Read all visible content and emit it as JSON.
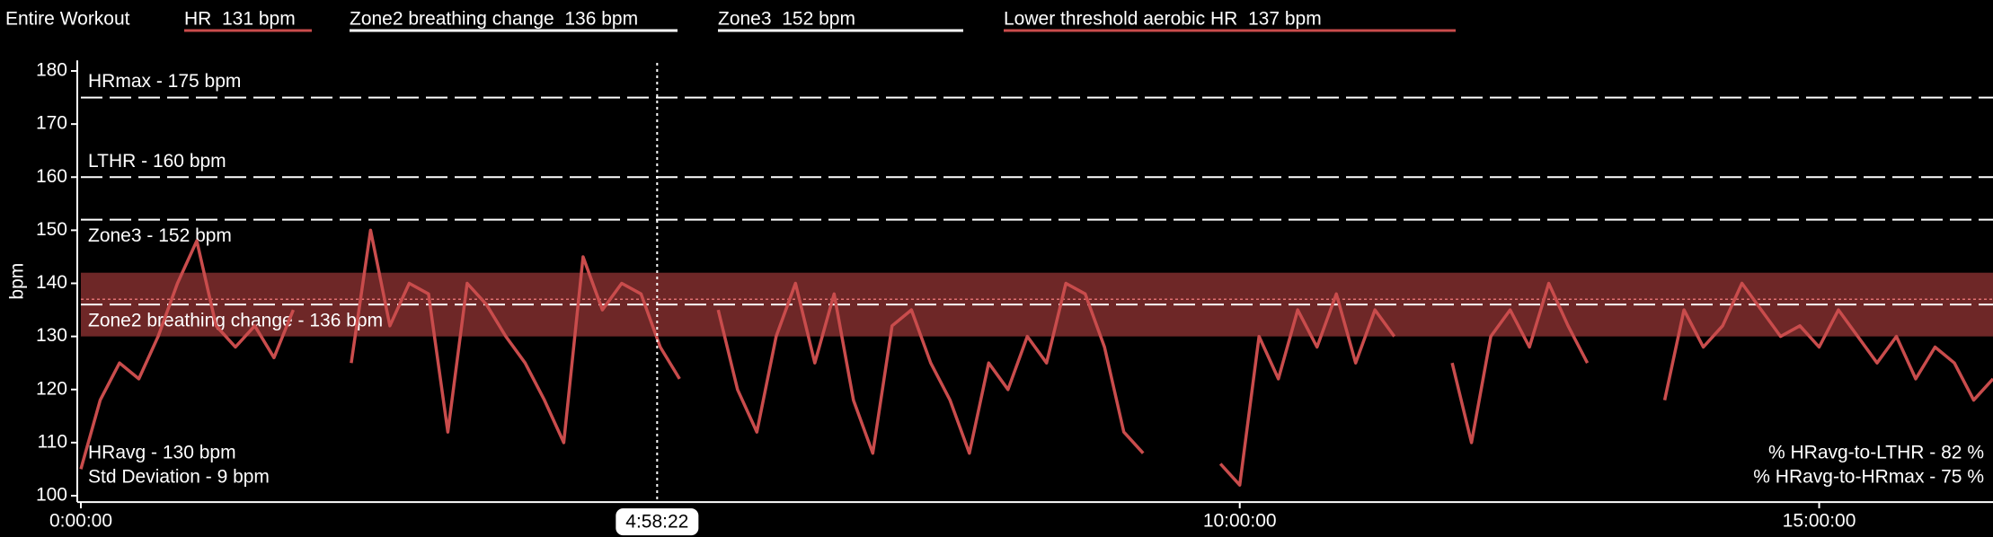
{
  "chart_data": {
    "type": "line",
    "header": [
      {
        "text": "Entire Workout"
      },
      {
        "text": "HR  131 bpm",
        "color": "#c94c4c"
      },
      {
        "text": "Zone2 breathing change  136 bpm",
        "color": "#ffffff"
      },
      {
        "text": "Zone3  152 bpm",
        "color": "#ffffff"
      },
      {
        "text": "Lower threshold aerobic HR  137 bpm",
        "color": "#c94c4c"
      }
    ],
    "y_label": "bpm",
    "xlim": [
      0,
      59400
    ],
    "ylim": [
      98.8,
      182
    ],
    "xticks": [
      {
        "value": 0,
        "label": "0:00:00"
      },
      {
        "value": 36000,
        "label": "10:00:00"
      },
      {
        "value": 54000,
        "label": "15:00:00"
      }
    ],
    "yticks": [
      100,
      110,
      120,
      130,
      140,
      150,
      160,
      170,
      180
    ],
    "cursor": {
      "value": 17902,
      "label": "4:58:22"
    },
    "band": {
      "low": 130,
      "high": 142,
      "color": "#6e2727"
    },
    "reference_lines": [
      {
        "value": 175,
        "label": "HRmax - 175 bpm",
        "style": "dashed",
        "label_position": "above"
      },
      {
        "value": 160,
        "label": "LTHR - 160 bpm",
        "style": "dashed",
        "label_position": "above"
      },
      {
        "value": 152,
        "label": "Zone3 - 152 bpm",
        "style": "dashed",
        "label_position": "below"
      },
      {
        "value": 136,
        "label": "Zone2 breathing change - 136 bpm",
        "style": "dashed",
        "label_position": "below"
      },
      {
        "value": 137,
        "style": "dotted"
      }
    ],
    "annotations_left": [
      "HRavg - 130 bpm",
      "Std Deviation - 9 bpm"
    ],
    "annotations_right": [
      "% HRavg-to-LTHR - 82 %",
      "% HRavg-to-HRmax - 75 %"
    ],
    "x": [
      0,
      600,
      1200,
      1800,
      2400,
      3000,
      3600,
      4200,
      4800,
      5400,
      6000,
      6600,
      7200,
      7800,
      8400,
      9000,
      9600,
      10200,
      10800,
      11400,
      12000,
      12600,
      13200,
      13800,
      14400,
      15000,
      15600,
      16200,
      16800,
      17400,
      18000,
      18600,
      19200,
      19800,
      20400,
      21000,
      21600,
      22200,
      22800,
      23400,
      24000,
      24600,
      25200,
      25800,
      26400,
      27000,
      27600,
      28200,
      28800,
      29400,
      30000,
      30600,
      31200,
      31800,
      32400,
      33000,
      33600,
      34200,
      34800,
      35400,
      36000,
      36600,
      37200,
      37800,
      38400,
      39000,
      39600,
      40200,
      40800,
      41400,
      42000,
      42600,
      43200,
      43800,
      44400,
      45000,
      45600,
      46200,
      46800,
      47400,
      48000,
      48600,
      49200,
      49800,
      50400,
      51000,
      51600,
      52200,
      52800,
      53400,
      54000,
      54600,
      55200,
      55800,
      56400,
      57000,
      57600,
      58200,
      58800,
      59400
    ],
    "series": [
      {
        "name": "HR",
        "color": "#c94c4c",
        "values": [
          105,
          118,
          125,
          122,
          130,
          140,
          148,
          132,
          128,
          132,
          126,
          135,
          null,
          null,
          125,
          150,
          132,
          140,
          138,
          112,
          140,
          136,
          130,
          125,
          118,
          110,
          145,
          135,
          140,
          138,
          128,
          122,
          null,
          135,
          120,
          112,
          130,
          140,
          125,
          138,
          118,
          108,
          132,
          135,
          125,
          118,
          108,
          125,
          120,
          130,
          125,
          140,
          138,
          128,
          112,
          108,
          null,
          null,
          null,
          106,
          102,
          130,
          122,
          135,
          128,
          138,
          125,
          135,
          130,
          null,
          null,
          125,
          110,
          130,
          135,
          128,
          140,
          132,
          125,
          null,
          null,
          null,
          118,
          135,
          128,
          132,
          140,
          135,
          130,
          132,
          128,
          135,
          130,
          125,
          130,
          122,
          128,
          125,
          118,
          122
        ]
      }
    ]
  }
}
